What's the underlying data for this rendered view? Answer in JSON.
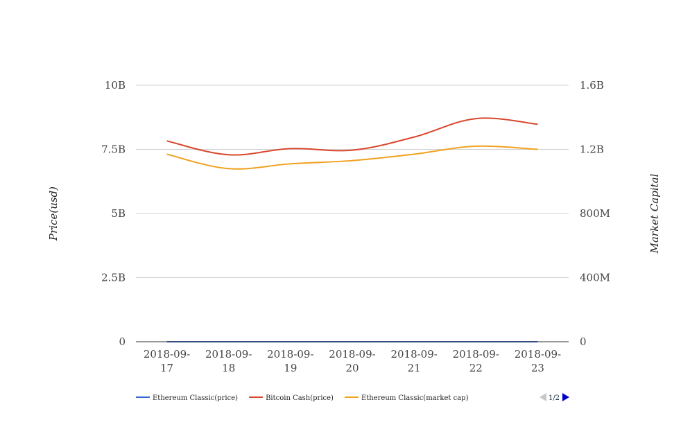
{
  "chart_data": {
    "type": "line",
    "categories": [
      "2018-09-17",
      "2018-09-18",
      "2018-09-19",
      "2018-09-20",
      "2018-09-21",
      "2018-09-22",
      "2018-09-23"
    ],
    "category_lines": [
      [
        "2018-09-",
        "17"
      ],
      [
        "2018-09-",
        "18"
      ],
      [
        "2018-09-",
        "19"
      ],
      [
        "2018-09-",
        "20"
      ],
      [
        "2018-09-",
        "21"
      ],
      [
        "2018-09-",
        "22"
      ],
      [
        "2018-09-",
        "23"
      ]
    ],
    "y_left": {
      "label": "Price(usd)",
      "ylim": [
        0,
        10000000000
      ],
      "ticks": [
        0,
        2500000000,
        5000000000,
        7500000000,
        10000000000
      ],
      "tick_labels": [
        "0",
        "2.5B",
        "5B",
        "7.5B",
        "10B"
      ]
    },
    "y_right": {
      "label": "Market Capital",
      "ylim": [
        0,
        1600000000
      ],
      "ticks": [
        0,
        400000000,
        800000000,
        1200000000,
        1600000000
      ],
      "tick_labels": [
        "0",
        "400M",
        "800M",
        "1.2B",
        "1.6B"
      ]
    },
    "grid": true,
    "legend_position": "bottom-left",
    "series": [
      {
        "name": "Ethereum Classic(price)",
        "axis": "left",
        "color": "#3366cc",
        "values": [
          11.8,
          10.7,
          10.9,
          11.2,
          11.3,
          11.6,
          11.4
        ]
      },
      {
        "name": "Bitcoin Cash(price)",
        "axis": "left",
        "color": "#d9462b",
        "values": [
          7830000000,
          7290000000,
          7530000000,
          7470000000,
          7980000000,
          8700000000,
          8480000000
        ]
      },
      {
        "name": "Ethereum Classic(market cap)",
        "axis": "right",
        "color": "#f0a01e",
        "values": [
          1170000000,
          1080000000,
          1110000000,
          1130000000,
          1170000000,
          1220000000,
          1200000000
        ]
      },
      {
        "name": "",
        "axis": "left",
        "color": "#2e9e4a",
        "in_legend": false,
        "values": [
          0,
          0,
          0,
          0,
          0,
          0,
          0
        ]
      }
    ],
    "pager": "1/2"
  }
}
